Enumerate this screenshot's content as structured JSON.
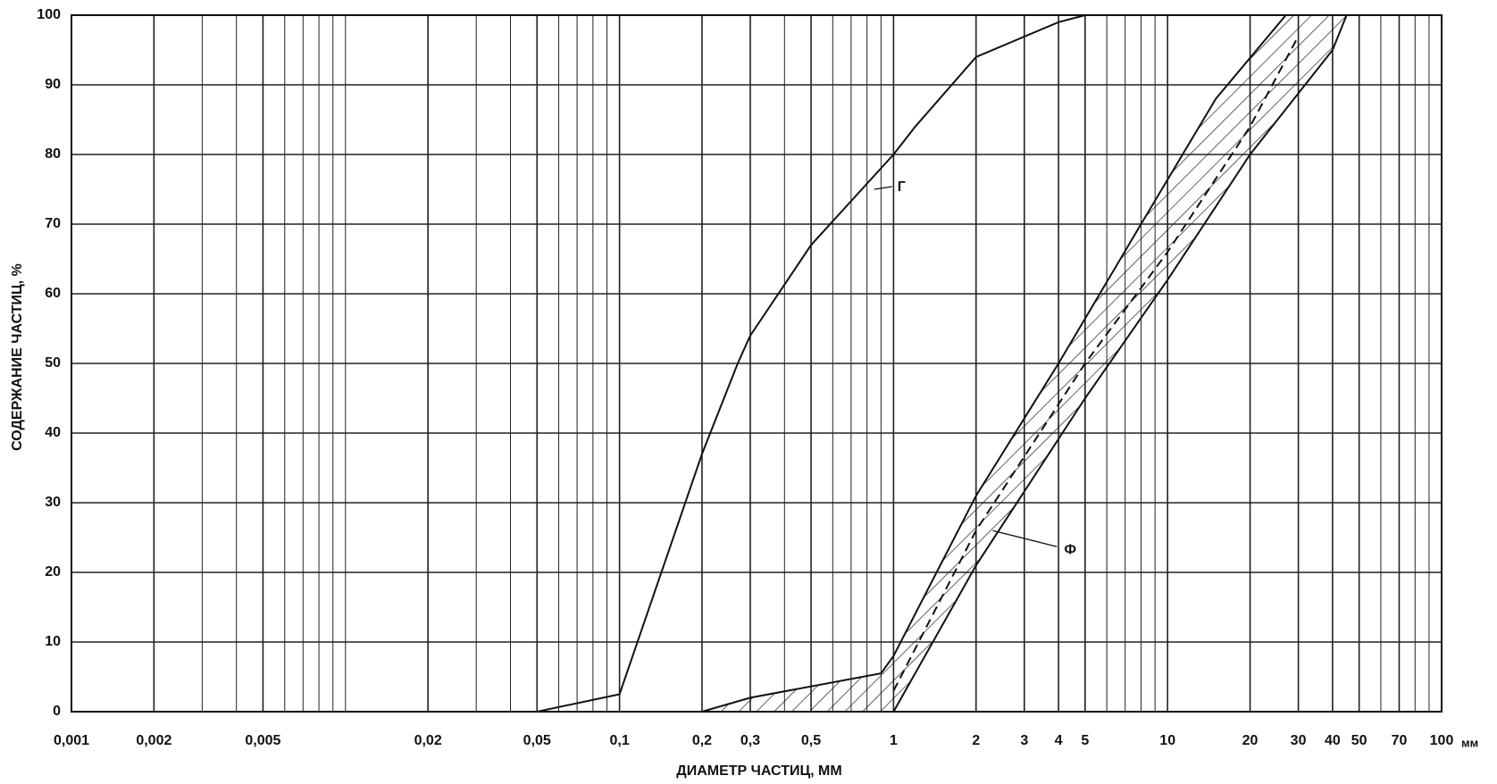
{
  "chart_data": {
    "type": "line",
    "xlabel": "ДИАМЕТР ЧАСТИЦ, ММ",
    "ylabel": "СОДЕРЖАНИЕ ЧАСТИЦ, %",
    "x_unit": "мм",
    "xscale": "log",
    "minor_grid": true,
    "grid": true,
    "xlim": [
      0.001,
      100
    ],
    "ylim": [
      0,
      100
    ],
    "xticks": [
      {
        "value": 0.001,
        "label": "0,001"
      },
      {
        "value": 0.002,
        "label": "0,002"
      },
      {
        "value": 0.005,
        "label": "0,005"
      },
      {
        "value": 0.02,
        "label": "0,02"
      },
      {
        "value": 0.05,
        "label": "0,05"
      },
      {
        "value": 0.1,
        "label": "0,1"
      },
      {
        "value": 0.2,
        "label": "0,2"
      },
      {
        "value": 0.3,
        "label": "0,3"
      },
      {
        "value": 0.5,
        "label": "0,5"
      },
      1,
      2,
      3,
      4,
      5,
      10,
      20,
      30,
      40,
      50,
      70,
      100
    ],
    "yticks": [
      0,
      10,
      20,
      30,
      40,
      50,
      60,
      70,
      80,
      90,
      100
    ],
    "series": [
      {
        "name": "Г",
        "color": "#111",
        "x": [
          0.05,
          0.1,
          0.2,
          0.27,
          0.3,
          0.5,
          1,
          1.2,
          2,
          4,
          5
        ],
        "values": [
          0,
          2.5,
          37,
          50,
          54,
          67,
          80,
          84,
          94,
          99,
          100
        ]
      },
      {
        "name": "Ф",
        "color": "#111",
        "x_upper": [
          0.2,
          0.3,
          0.9,
          1,
          2,
          4,
          8,
          15,
          27
        ],
        "upper": [
          0,
          2,
          5.5,
          8,
          31,
          50,
          70,
          88,
          100
        ],
        "x_lower": [
          0.2,
          1,
          2,
          5,
          10,
          20,
          40,
          45
        ],
        "lower": [
          0,
          0,
          21,
          45,
          62,
          80,
          95,
          100
        ]
      },
      {
        "color": "#111",
        "style": "dashed",
        "x": [
          1,
          2,
          5,
          10,
          20,
          30
        ],
        "values": [
          3,
          26,
          50,
          66,
          84,
          97
        ]
      }
    ]
  }
}
